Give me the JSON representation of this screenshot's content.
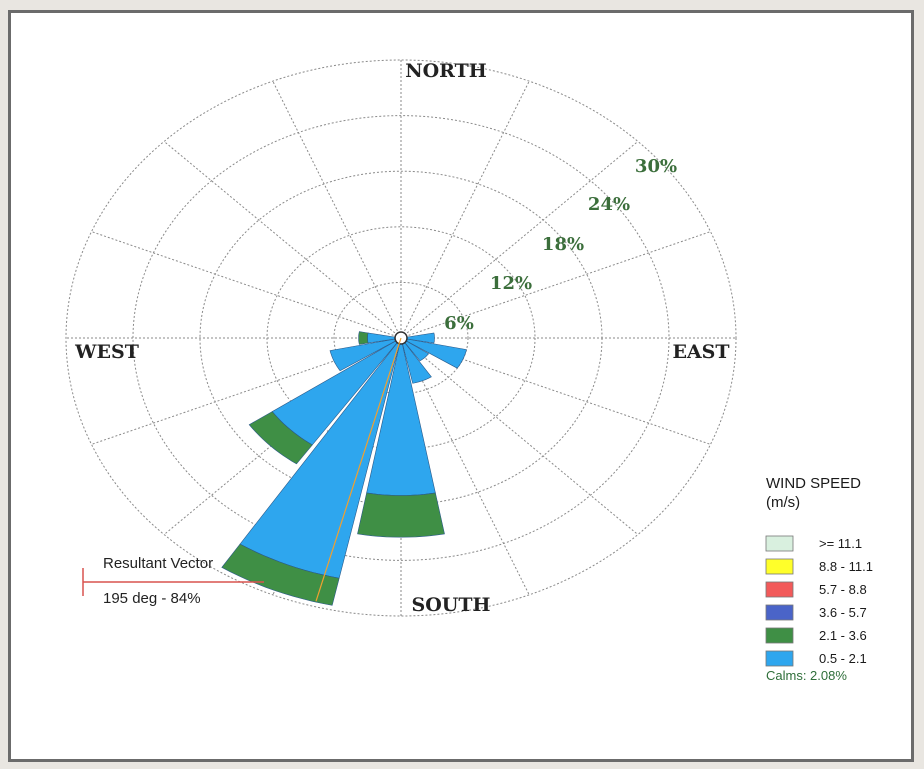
{
  "chart_data": {
    "type": "wind-rose",
    "directions": [
      "NORTH",
      "EAST",
      "SOUTH",
      "WEST"
    ],
    "rings": [
      "6%",
      "12%",
      "18%",
      "24%",
      "30%"
    ],
    "ring_max": 30,
    "sector_count": 16,
    "sectors": [
      {
        "dir_deg": 90,
        "bands": [
          3.0
        ]
      },
      {
        "dir_deg": 112.5,
        "bands": [
          6.0
        ]
      },
      {
        "dir_deg": 135,
        "bands": [
          3.0
        ]
      },
      {
        "dir_deg": 157.5,
        "bands": [
          5.0
        ]
      },
      {
        "dir_deg": 180,
        "bands": [
          17.0,
          4.5
        ]
      },
      {
        "dir_deg": 202.5,
        "bands": [
          26.5,
          3.0
        ]
      },
      {
        "dir_deg": 225,
        "bands": [
          14.0,
          2.5
        ]
      },
      {
        "dir_deg": 247.5,
        "bands": [
          6.5
        ]
      },
      {
        "dir_deg": 270,
        "bands": [
          3.0,
          0.8
        ]
      }
    ],
    "legend": {
      "title_line1": "WIND SPEED",
      "title_line2": "(m/s)",
      "classes": [
        {
          "label": ">= 11.1",
          "color": "#d9f0df"
        },
        {
          "label": "8.8 - 11.1",
          "color": "#ffff2a"
        },
        {
          "label": "5.7 - 8.8",
          "color": "#f25a5a"
        },
        {
          "label": "3.6 - 5.7",
          "color": "#4a64c8"
        },
        {
          "label": "2.1 - 3.6",
          "color": "#3f8f45"
        },
        {
          "label": "0.5 - 2.1",
          "color": "#2ea6ee"
        }
      ],
      "calms": "Calms: 2.08%"
    },
    "resultant_vector": {
      "label": "Resultant Vector",
      "value": "195 deg - 84%",
      "deg": 195
    }
  }
}
